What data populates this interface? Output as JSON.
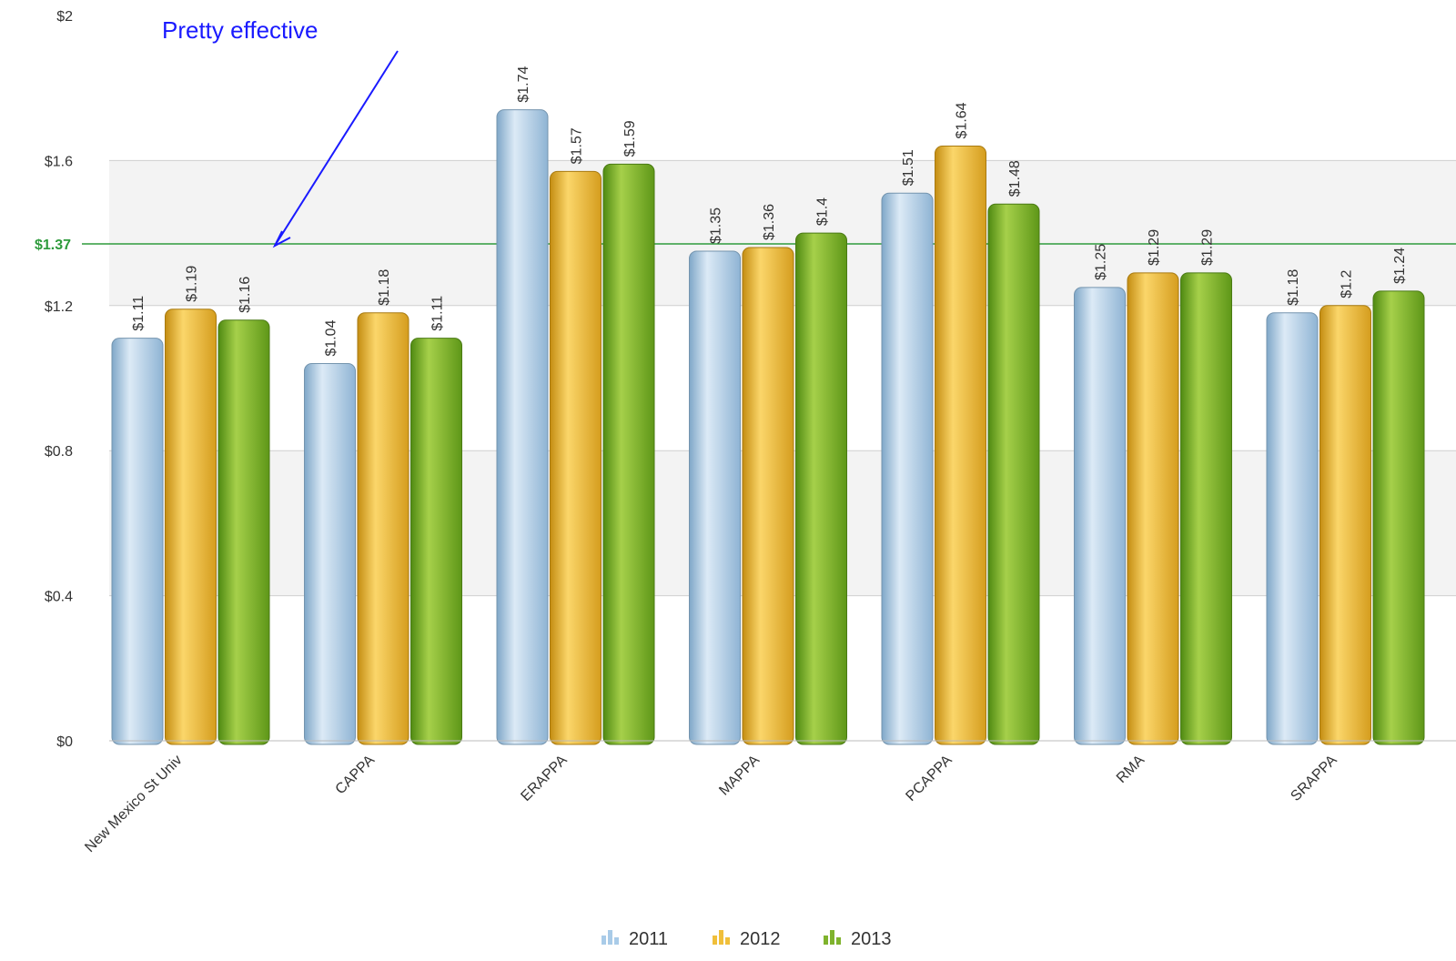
{
  "chart_data": {
    "type": "bar",
    "categories": [
      "New Mexico St Univ",
      "CAPPA",
      "ERAPPA",
      "MAPPA",
      "PCAPPA",
      "RMA",
      "SRAPPA"
    ],
    "series": [
      {
        "name": "2011",
        "values": [
          1.11,
          1.04,
          1.74,
          1.35,
          1.51,
          1.25,
          1.18
        ],
        "labels": [
          "$1.11",
          "$1.04",
          "$1.74",
          "$1.35",
          "$1.51",
          "$1.25",
          "$1.18"
        ],
        "color": "#a9cbe8"
      },
      {
        "name": "2012",
        "values": [
          1.19,
          1.18,
          1.57,
          1.36,
          1.64,
          1.29,
          1.2
        ],
        "labels": [
          "$1.19",
          "$1.18",
          "$1.57",
          "$1.36",
          "$1.64",
          "$1.29",
          "$1.2"
        ],
        "color": "#f0bf3a"
      },
      {
        "name": "2013",
        "values": [
          1.16,
          1.11,
          1.59,
          1.4,
          1.48,
          1.29,
          1.24
        ],
        "labels": [
          "$1.16",
          "$1.11",
          "$1.59",
          "$1.4",
          "$1.48",
          "$1.29",
          "$1.24"
        ],
        "color": "#7fb32d"
      }
    ],
    "y_ticks": [
      {
        "value": 0,
        "label": "$0"
      },
      {
        "value": 0.4,
        "label": "$0.4"
      },
      {
        "value": 0.8,
        "label": "$0.8"
      },
      {
        "value": 1.2,
        "label": "$1.2"
      },
      {
        "value": 1.6,
        "label": "$1.6"
      },
      {
        "value": 2,
        "label": "$2"
      }
    ],
    "ylim": [
      0,
      2
    ],
    "reference_line": {
      "value": 1.37,
      "label": "$1.37",
      "color": "#2e9b3c"
    },
    "annotation": {
      "text": "Pretty effective",
      "color": "#1a1aff"
    },
    "legend_position": "bottom-center",
    "grid": true
  }
}
